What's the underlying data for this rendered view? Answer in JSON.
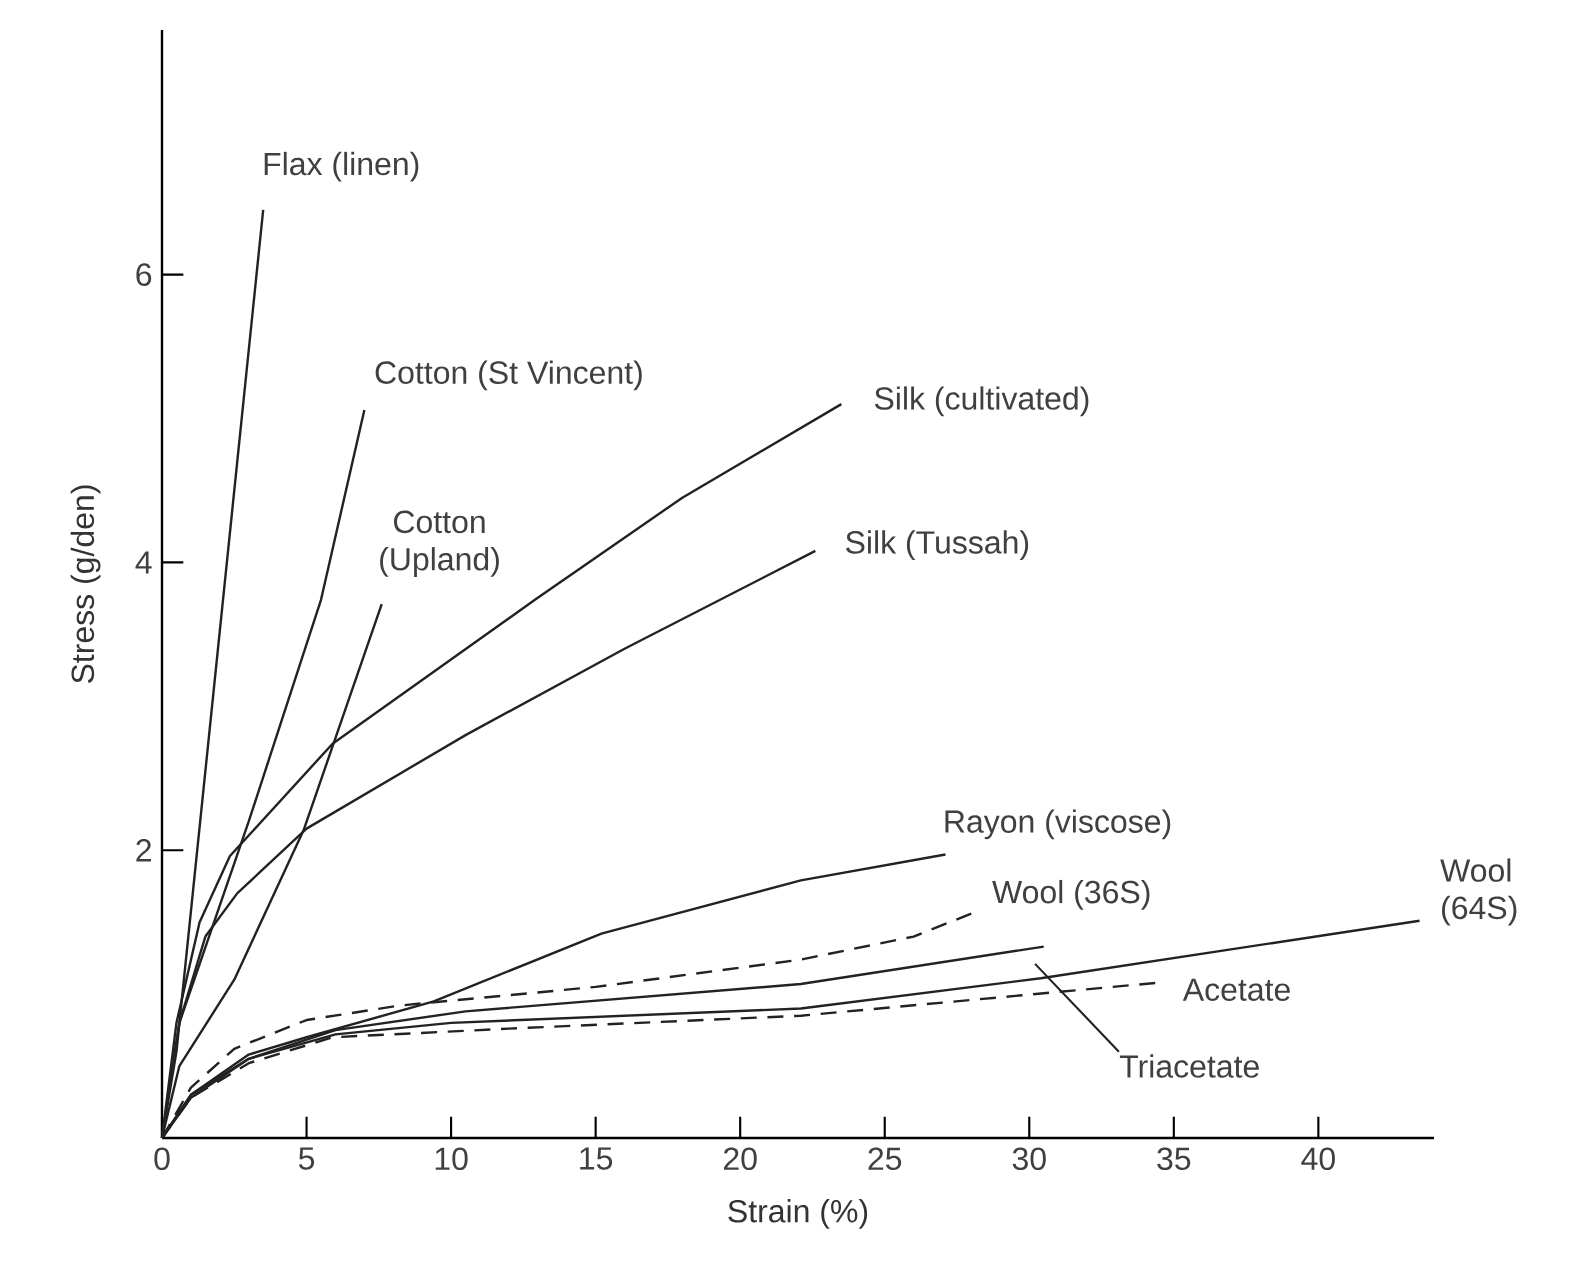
{
  "chart_data": {
    "type": "line",
    "xlabel": "Strain (%)",
    "ylabel": "Stress (g/den)",
    "xlim": [
      0,
      44
    ],
    "ylim": [
      0,
      7.7
    ],
    "xticks": [
      0,
      5,
      10,
      15,
      20,
      25,
      30,
      35,
      40
    ],
    "yticks": [
      2,
      4,
      6
    ],
    "line_style": "solid",
    "series": [
      {
        "name": "Flax (linen)",
        "color": "#222222",
        "x": [
          0,
          0.5,
          3.5
        ],
        "values": [
          0,
          0.6,
          6.45
        ]
      },
      {
        "name": "Cotton (St Vincent)",
        "color": "#222222",
        "x": [
          0,
          0.6,
          3,
          5.5,
          7
        ],
        "values": [
          0,
          0.8,
          2.2,
          3.74,
          5.06
        ]
      },
      {
        "name": "Cotton (Upland)",
        "color": "#222222",
        "x": [
          0,
          0.6,
          2.5,
          4.9,
          7.6
        ],
        "values": [
          0,
          0.5,
          1.1,
          2.14,
          3.71
        ]
      },
      {
        "name": "Silk (cultivated)",
        "color": "#222222",
        "x": [
          0,
          0.5,
          1.3,
          2.35,
          5.9,
          12.9,
          18,
          23.5
        ],
        "values": [
          0,
          0.8,
          1.5,
          1.96,
          2.74,
          3.74,
          4.45,
          5.1
        ]
      },
      {
        "name": "Silk (Tussah)",
        "color": "#222222",
        "x": [
          0,
          0.6,
          1.5,
          2.6,
          5,
          10.5,
          16,
          22.6
        ],
        "values": [
          0,
          0.8,
          1.4,
          1.7,
          2.15,
          2.8,
          3.4,
          4.08
        ]
      },
      {
        "name": "Rayon (viscose)",
        "color": "#222222",
        "x": [
          0,
          1,
          3,
          5,
          9.4,
          15.2,
          22.1,
          27.1
        ],
        "values": [
          0,
          0.3,
          0.58,
          0.7,
          0.95,
          1.42,
          1.79,
          1.97
        ]
      },
      {
        "name": "Wool (36S)",
        "color": "#222222",
        "line_style": "dashed",
        "x": [
          0,
          1,
          2.5,
          5,
          8.2,
          15,
          22.1,
          26,
          28
        ],
        "values": [
          0,
          0.35,
          0.62,
          0.82,
          0.92,
          1.05,
          1.24,
          1.4,
          1.56
        ]
      },
      {
        "name": "Triacetate",
        "color": "#222222",
        "x": [
          0,
          1,
          3,
          6,
          10.5,
          22.1,
          30.5
        ],
        "values": [
          0,
          0.3,
          0.55,
          0.75,
          0.88,
          1.07,
          1.33
        ]
      },
      {
        "name": "Wool (64S)",
        "color": "#222222",
        "x": [
          0,
          1,
          3,
          6,
          10,
          22.1,
          30.4,
          43.5
        ],
        "values": [
          0,
          0.28,
          0.55,
          0.72,
          0.8,
          0.9,
          1.11,
          1.51
        ]
      },
      {
        "name": "Acetate",
        "color": "#222222",
        "line_style": "dashed",
        "x": [
          0,
          1,
          3,
          5.9,
          12,
          22.1,
          34.5
        ],
        "values": [
          0,
          0.28,
          0.52,
          0.7,
          0.76,
          0.85,
          1.08
        ]
      }
    ]
  }
}
